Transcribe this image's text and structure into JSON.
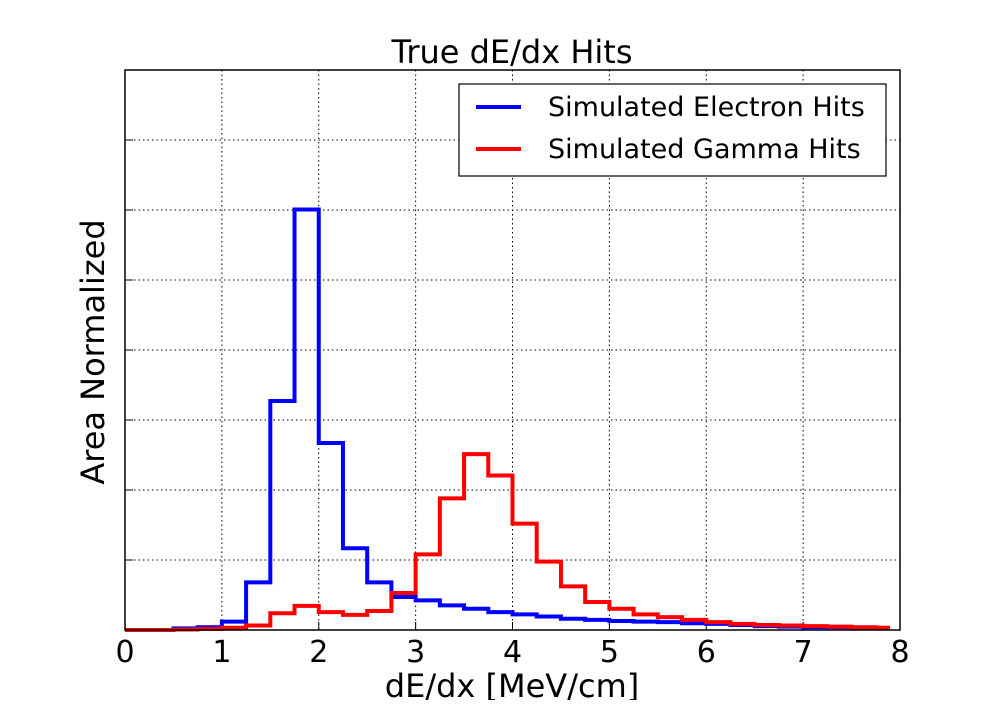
{
  "chart_data": {
    "type": "line",
    "title": "True dE/dx Hits",
    "xlabel": "dE/dx [MeV/cm]",
    "ylabel": "Area Normalized",
    "xlim": [
      0,
      8
    ],
    "ylim": [
      0,
      1.0
    ],
    "x_ticks": [
      "0",
      "1",
      "2",
      "3",
      "4",
      "5",
      "6",
      "7",
      "8"
    ],
    "grid": true,
    "legend_position": "top-right",
    "bin_edges": [
      0.0,
      0.25,
      0.5,
      0.75,
      1.0,
      1.25,
      1.5,
      1.75,
      2.0,
      2.25,
      2.5,
      2.75,
      3.0,
      3.25,
      3.5,
      3.75,
      4.0,
      4.25,
      4.5,
      4.75,
      5.0,
      5.25,
      5.5,
      5.75,
      6.0,
      6.25,
      6.5,
      6.75,
      7.0,
      7.25,
      7.5,
      7.75,
      7.875
    ],
    "series": [
      {
        "name": "Simulated Electron Hits",
        "color": "#0000ff",
        "values": [
          0.0,
          0.0,
          0.003,
          0.005,
          0.015,
          0.085,
          0.409,
          0.751,
          0.334,
          0.146,
          0.085,
          0.059,
          0.053,
          0.044,
          0.038,
          0.032,
          0.028,
          0.024,
          0.02,
          0.018,
          0.016,
          0.015,
          0.014,
          0.012,
          0.011,
          0.009,
          0.007,
          0.006,
          0.005,
          0.005,
          0.004,
          0.003
        ]
      },
      {
        "name": "Simulated Gamma Hits",
        "color": "#ff0000",
        "values": [
          0.0,
          0.0,
          0.001,
          0.002,
          0.004,
          0.008,
          0.03,
          0.043,
          0.032,
          0.027,
          0.034,
          0.066,
          0.135,
          0.235,
          0.314,
          0.276,
          0.19,
          0.122,
          0.078,
          0.05,
          0.038,
          0.028,
          0.023,
          0.018,
          0.014,
          0.011,
          0.009,
          0.008,
          0.007,
          0.006,
          0.005,
          0.004
        ]
      }
    ]
  }
}
